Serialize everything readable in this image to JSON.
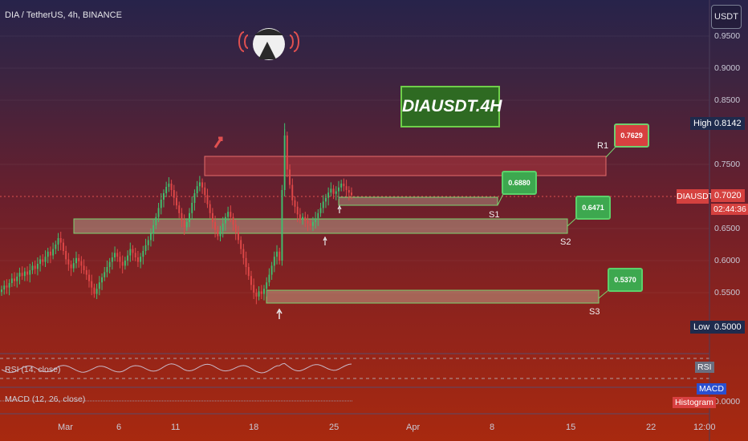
{
  "header": {
    "symbol_line": "DIA / TetherUS, 4h, BINANCE",
    "currency": "USDT",
    "title_box": "DIAUSDT.4H"
  },
  "price_axis": {
    "ticks": [
      "0.9500",
      "0.9000",
      "0.8500",
      "0.7500",
      "0.6500",
      "0.6000",
      "0.5500",
      "0.0000"
    ],
    "high_label": "High",
    "high_value": "0.8142",
    "low_label": "Low",
    "low_value": "0.5000",
    "symbol_tag": "DIAUSDT",
    "last_price": "0.7020",
    "countdown": "02:44:36"
  },
  "time_axis": {
    "ticks": [
      "Mar",
      "6",
      "11",
      "18",
      "25",
      "Apr",
      "8",
      "15",
      "22",
      "12:00"
    ]
  },
  "zones": [
    {
      "label": "R1",
      "callout": "0.7629",
      "color": "#d84040"
    },
    {
      "label": "S1",
      "callout": "0.6880",
      "color": "#3da84f"
    },
    {
      "label": "S2",
      "callout": "0.6471",
      "color": "#3da84f"
    },
    {
      "label": "S3",
      "callout": "0.5370",
      "color": "#3da84f"
    }
  ],
  "indicators": {
    "rsi_label": "RSI (14, close)",
    "rsi_tag": "RSI",
    "macd_label": "MACD (12, 26, close)",
    "macd_tag": "MACD",
    "histogram_tag": "Histogram"
  },
  "colors": {
    "up": "#3fbf6f",
    "down": "#e04848",
    "resistance": "#d84040",
    "support": "#3da84f",
    "title_bg": "#2e6a22"
  },
  "chart_data": {
    "type": "candlestick",
    "title": "DIA / TetherUS, 4h, BINANCE",
    "ylim": [
      0.5,
      0.95
    ],
    "y_ticks": [
      0.55,
      0.6,
      0.65,
      0.75,
      0.85,
      0.9,
      0.95
    ],
    "x_ticks": [
      "Mar",
      "6",
      "11",
      "18",
      "25",
      "Apr",
      "8",
      "15",
      "22",
      "12:00"
    ],
    "high": 0.8142,
    "low": 0.5,
    "last": 0.702,
    "closes": [
      0.555,
      0.561,
      0.558,
      0.565,
      0.572,
      0.568,
      0.575,
      0.581,
      0.576,
      0.583,
      0.578,
      0.585,
      0.592,
      0.587,
      0.595,
      0.602,
      0.598,
      0.606,
      0.614,
      0.608,
      0.618,
      0.625,
      0.635,
      0.628,
      0.615,
      0.602,
      0.594,
      0.588,
      0.596,
      0.604,
      0.599,
      0.592,
      0.585,
      0.578,
      0.568,
      0.558,
      0.548,
      0.556,
      0.566,
      0.574,
      0.582,
      0.59,
      0.598,
      0.605,
      0.612,
      0.606,
      0.598,
      0.592,
      0.6,
      0.608,
      0.618,
      0.612,
      0.605,
      0.598,
      0.606,
      0.615,
      0.624,
      0.632,
      0.642,
      0.655,
      0.668,
      0.682,
      0.695,
      0.705,
      0.715,
      0.72,
      0.71,
      0.698,
      0.686,
      0.674,
      0.662,
      0.652,
      0.66,
      0.674,
      0.69,
      0.705,
      0.716,
      0.722,
      0.714,
      0.702,
      0.688,
      0.674,
      0.66,
      0.648,
      0.638,
      0.646,
      0.658,
      0.668,
      0.676,
      0.668,
      0.656,
      0.644,
      0.632,
      0.618,
      0.604,
      0.59,
      0.576,
      0.562,
      0.55,
      0.544,
      0.552,
      0.548,
      0.556,
      0.566,
      0.578,
      0.592,
      0.606,
      0.614,
      0.6,
      0.71,
      0.795,
      0.742,
      0.718,
      0.694,
      0.684,
      0.672,
      0.664,
      0.668,
      0.662,
      0.658,
      0.654,
      0.66,
      0.666,
      0.674,
      0.682,
      0.692,
      0.698,
      0.706,
      0.712,
      0.704,
      0.708,
      0.714,
      0.72,
      0.716,
      0.71,
      0.706,
      0.702
    ],
    "zones": [
      {
        "name": "R1",
        "low": 0.735,
        "high": 0.764
      },
      {
        "name": "S1",
        "low": 0.687,
        "high": 0.697
      },
      {
        "name": "S2",
        "low": 0.648,
        "high": 0.668
      },
      {
        "name": "S3",
        "low": 0.535,
        "high": 0.553
      }
    ],
    "callouts": [
      0.7629,
      0.688,
      0.6471,
      0.537
    ]
  }
}
